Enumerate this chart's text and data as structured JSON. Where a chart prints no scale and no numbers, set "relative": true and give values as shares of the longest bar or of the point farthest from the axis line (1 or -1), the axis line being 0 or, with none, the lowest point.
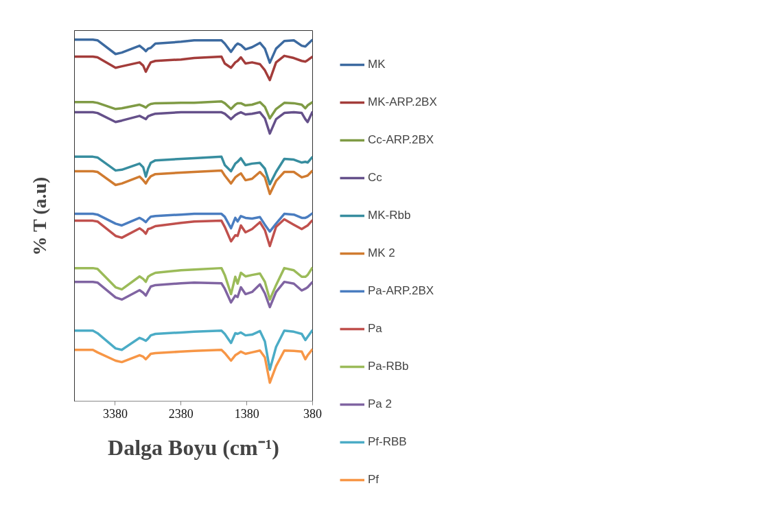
{
  "chart_data": {
    "type": "line",
    "xlabel": "Dalga Boyu (cm⁻¹)",
    "ylabel": "% T (a.u)",
    "relative": true,
    "xlim": [
      4000,
      380
    ],
    "xticks": [
      3380,
      2380,
      1380,
      380
    ],
    "tick_labels": "x",
    "grid": false,
    "legend": "right",
    "marker": "none",
    "line_style": "solid",
    "x": [
      4000,
      3720,
      3650,
      3375,
      3280,
      3010,
      2955,
      2915,
      2880,
      2840,
      2770,
      2380,
      2180,
      1765,
      1715,
      1620,
      1555,
      1520,
      1470,
      1400,
      1300,
      1180,
      1105,
      1030,
      935,
      810,
      665,
      545,
      490,
      455,
      380
    ],
    "series": [
      {
        "name": "MK",
        "color": "#3c6aa0",
        "values": [
          1.0,
          1.0,
          0.998,
          0.96,
          0.964,
          0.983,
          0.975,
          0.968,
          0.975,
          0.977,
          0.989,
          0.994,
          0.998,
          0.998,
          0.989,
          0.966,
          0.983,
          0.989,
          0.985,
          0.973,
          0.979,
          0.991,
          0.975,
          0.936,
          0.975,
          0.996,
          0.998,
          0.983,
          0.981,
          0.987,
          1.0
        ]
      },
      {
        "name": "MK-ARP.2BX",
        "color": "#a33c3a",
        "values": [
          0.953,
          0.953,
          0.951,
          0.922,
          0.926,
          0.937,
          0.928,
          0.911,
          0.924,
          0.937,
          0.941,
          0.945,
          0.949,
          0.953,
          0.934,
          0.922,
          0.937,
          0.941,
          0.951,
          0.934,
          0.937,
          0.932,
          0.915,
          0.888,
          0.937,
          0.955,
          0.949,
          0.941,
          0.939,
          0.943,
          0.953
        ]
      },
      {
        "name": "Cc-ARP.2BX",
        "color": "#7f9b45",
        "values": [
          0.827,
          0.827,
          0.825,
          0.808,
          0.81,
          0.82,
          0.816,
          0.812,
          0.818,
          0.822,
          0.824,
          0.825,
          0.825,
          0.829,
          0.824,
          0.808,
          0.82,
          0.824,
          0.824,
          0.818,
          0.82,
          0.827,
          0.814,
          0.782,
          0.808,
          0.825,
          0.824,
          0.82,
          0.81,
          0.818,
          0.827
        ]
      },
      {
        "name": "Cc",
        "color": "#65508a",
        "values": [
          0.799,
          0.799,
          0.797,
          0.772,
          0.776,
          0.789,
          0.784,
          0.78,
          0.788,
          0.791,
          0.795,
          0.799,
          0.799,
          0.799,
          0.795,
          0.78,
          0.791,
          0.795,
          0.799,
          0.793,
          0.795,
          0.799,
          0.782,
          0.74,
          0.78,
          0.797,
          0.799,
          0.797,
          0.78,
          0.772,
          0.801
        ]
      },
      {
        "name": "MK-Rbb",
        "color": "#378d9f",
        "values": [
          0.676,
          0.676,
          0.674,
          0.638,
          0.64,
          0.657,
          0.647,
          0.621,
          0.643,
          0.659,
          0.666,
          0.67,
          0.672,
          0.676,
          0.653,
          0.636,
          0.657,
          0.662,
          0.672,
          0.653,
          0.657,
          0.659,
          0.643,
          0.6,
          0.634,
          0.67,
          0.668,
          0.66,
          0.662,
          0.66,
          0.676
        ]
      },
      {
        "name": "MK 2",
        "color": "#d07b30",
        "values": [
          0.636,
          0.636,
          0.634,
          0.598,
          0.602,
          0.621,
          0.611,
          0.602,
          0.613,
          0.622,
          0.628,
          0.632,
          0.634,
          0.638,
          0.624,
          0.602,
          0.619,
          0.624,
          0.63,
          0.611,
          0.615,
          0.634,
          0.619,
          0.573,
          0.609,
          0.634,
          0.634,
          0.619,
          0.622,
          0.624,
          0.638
        ]
      },
      {
        "name": "Pa-ARP.2BX",
        "color": "#4a7dc0",
        "values": [
          0.518,
          0.518,
          0.516,
          0.491,
          0.486,
          0.507,
          0.501,
          0.495,
          0.503,
          0.51,
          0.512,
          0.516,
          0.518,
          0.518,
          0.51,
          0.478,
          0.507,
          0.497,
          0.512,
          0.507,
          0.505,
          0.509,
          0.488,
          0.469,
          0.491,
          0.518,
          0.516,
          0.507,
          0.507,
          0.51,
          0.52
        ]
      },
      {
        "name": "Pa",
        "color": "#c0504d",
        "values": [
          0.499,
          0.499,
          0.497,
          0.457,
          0.452,
          0.478,
          0.471,
          0.463,
          0.476,
          0.478,
          0.484,
          0.493,
          0.497,
          0.499,
          0.482,
          0.442,
          0.459,
          0.457,
          0.486,
          0.467,
          0.476,
          0.495,
          0.473,
          0.429,
          0.482,
          0.503,
          0.488,
          0.476,
          0.482,
          0.486,
          0.501
        ]
      },
      {
        "name": "Pa-RBb",
        "color": "#9bbb59",
        "values": [
          0.368,
          0.368,
          0.366,
          0.315,
          0.309,
          0.345,
          0.338,
          0.33,
          0.344,
          0.349,
          0.355,
          0.362,
          0.364,
          0.368,
          0.349,
          0.296,
          0.344,
          0.325,
          0.355,
          0.345,
          0.349,
          0.353,
          0.33,
          0.281,
          0.321,
          0.368,
          0.362,
          0.344,
          0.344,
          0.349,
          0.37
        ]
      },
      {
        "name": "Pa 2",
        "color": "#8064a2",
        "values": [
          0.33,
          0.33,
          0.328,
          0.287,
          0.281,
          0.307,
          0.3,
          0.292,
          0.304,
          0.317,
          0.321,
          0.326,
          0.328,
          0.326,
          0.311,
          0.273,
          0.292,
          0.288,
          0.315,
          0.296,
          0.302,
          0.323,
          0.298,
          0.26,
          0.302,
          0.33,
          0.325,
          0.306,
          0.311,
          0.315,
          0.33
        ]
      },
      {
        "name": "Pf-RBB",
        "color": "#4bacc6",
        "values": [
          0.195,
          0.195,
          0.188,
          0.146,
          0.142,
          0.175,
          0.171,
          0.167,
          0.173,
          0.182,
          0.186,
          0.19,
          0.192,
          0.195,
          0.186,
          0.161,
          0.188,
          0.186,
          0.19,
          0.182,
          0.184,
          0.194,
          0.165,
          0.087,
          0.15,
          0.195,
          0.192,
          0.186,
          0.169,
          0.178,
          0.197
        ]
      },
      {
        "name": "Pf",
        "color": "#f79646",
        "values": [
          0.142,
          0.142,
          0.135,
          0.112,
          0.108,
          0.127,
          0.123,
          0.116,
          0.123,
          0.131,
          0.133,
          0.137,
          0.139,
          0.142,
          0.133,
          0.112,
          0.127,
          0.131,
          0.137,
          0.131,
          0.135,
          0.14,
          0.121,
          0.051,
          0.097,
          0.14,
          0.139,
          0.137,
          0.116,
          0.127,
          0.144
        ]
      }
    ]
  }
}
